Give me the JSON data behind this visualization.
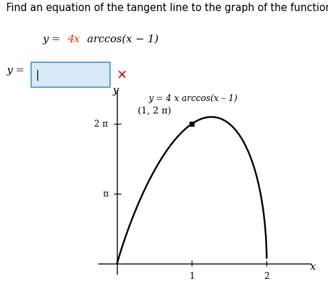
{
  "title_text": "Find an equation of the tangent line to the graph of the function at the given point.",
  "equation_prefix": "y = ",
  "equation_colored": "4x",
  "equation_suffix": " arccos(x − 1)",
  "equation_4x_color": "#dd3311",
  "graph_label_line1": "y = 4 x arccos(x – 1)",
  "point_label": "(1, 2 π)",
  "y_label": "y",
  "x_label": "x",
  "ytick_labels": [
    "2 π",
    "π"
  ],
  "ytick_values": [
    6.2831853,
    3.1415927
  ],
  "xtick_values": [
    1,
    2
  ],
  "y_range": [
    -0.5,
    7.8
  ],
  "x_range": [
    -0.25,
    2.6
  ],
  "point_x": 1.0,
  "point_y": 6.2831853,
  "curve_color": "#000000",
  "axes_color": "#000000",
  "background_color": "#ffffff",
  "input_box_color": "#d6eaf8",
  "input_box_border": "#4a90c4",
  "x_color": "#cc0000",
  "title_fontsize": 10.5,
  "eq_fontsize": 11,
  "graph_fontsize": 9,
  "tick_fontsize": 9,
  "axis_label_fontsize": 11
}
